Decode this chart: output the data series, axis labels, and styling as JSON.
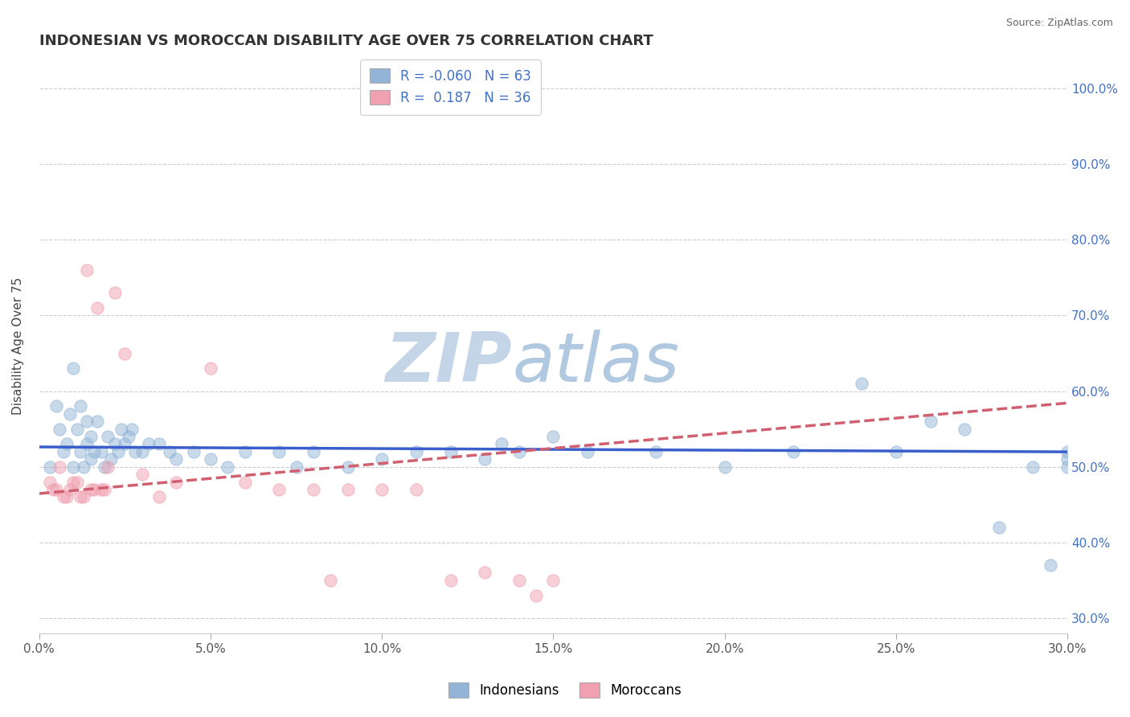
{
  "title": "INDONESIAN VS MOROCCAN DISABILITY AGE OVER 75 CORRELATION CHART",
  "source": "Source: ZipAtlas.com",
  "xlim": [
    0.0,
    30.0
  ],
  "ylim": [
    28.0,
    104.0
  ],
  "indonesian_R": -0.06,
  "indonesian_N": 63,
  "moroccan_R": 0.187,
  "moroccan_N": 36,
  "blue_color": "#92b4d7",
  "pink_color": "#f0a0b0",
  "blue_line_color": "#3a5fcd",
  "pink_line_color": "#d06070",
  "title_color": "#333333",
  "source_color": "#666666",
  "watermark_color": "#c5d5e8",
  "indonesian_x": [
    0.3,
    0.5,
    0.6,
    0.7,
    0.8,
    0.9,
    1.0,
    1.0,
    1.1,
    1.2,
    1.2,
    1.3,
    1.4,
    1.4,
    1.5,
    1.5,
    1.6,
    1.7,
    1.8,
    1.9,
    2.0,
    2.1,
    2.2,
    2.3,
    2.4,
    2.5,
    2.6,
    2.7,
    2.8,
    3.0,
    3.2,
    3.5,
    3.8,
    4.0,
    4.5,
    5.0,
    5.5,
    6.0,
    7.0,
    7.5,
    8.0,
    9.0,
    10.0,
    11.0,
    12.0,
    13.0,
    13.5,
    14.0,
    15.0,
    16.0,
    18.0,
    20.0,
    22.0,
    24.0,
    25.0,
    26.0,
    27.0,
    28.0,
    29.0,
    29.5,
    30.0,
    30.0,
    30.0
  ],
  "indonesian_y": [
    50,
    58,
    55,
    52,
    53,
    57,
    50,
    63,
    55,
    58,
    52,
    50,
    53,
    56,
    51,
    54,
    52,
    56,
    52,
    50,
    54,
    51,
    53,
    52,
    55,
    53,
    54,
    55,
    52,
    52,
    53,
    53,
    52,
    51,
    52,
    51,
    50,
    52,
    52,
    50,
    52,
    50,
    51,
    52,
    52,
    51,
    53,
    52,
    54,
    52,
    52,
    50,
    52,
    61,
    52,
    56,
    55,
    42,
    50,
    37,
    51,
    52,
    50
  ],
  "moroccan_x": [
    0.3,
    0.4,
    0.5,
    0.6,
    0.7,
    0.8,
    0.9,
    1.0,
    1.1,
    1.2,
    1.3,
    1.4,
    1.5,
    1.6,
    1.7,
    1.8,
    1.9,
    2.0,
    2.2,
    2.5,
    3.0,
    3.5,
    4.0,
    5.0,
    6.0,
    7.0,
    8.0,
    8.5,
    9.0,
    10.0,
    11.0,
    12.0,
    13.0,
    14.0,
    14.5,
    15.0
  ],
  "moroccan_y": [
    48,
    47,
    47,
    50,
    46,
    46,
    47,
    48,
    48,
    46,
    46,
    76,
    47,
    47,
    71,
    47,
    47,
    50,
    73,
    65,
    49,
    46,
    48,
    63,
    48,
    47,
    47,
    35,
    47,
    47,
    47,
    35,
    36,
    35,
    33,
    35
  ],
  "legend_label_blue": "Indonesians",
  "legend_label_pink": "Moroccans",
  "y_tick_vals": [
    30,
    40,
    50,
    60,
    70,
    80,
    90,
    100
  ],
  "y_tick_labels": [
    "30.0%",
    "40.0%",
    "50.0%",
    "60.0%",
    "70.0%",
    "80.0%",
    "90.0%",
    "100.0%"
  ],
  "x_tick_vals": [
    0,
    5,
    10,
    15,
    20,
    25,
    30
  ],
  "x_tick_labels": [
    "0.0%",
    "5.0%",
    "10.0%",
    "15.0%",
    "20.0%",
    "25.0%",
    "30.0%"
  ]
}
